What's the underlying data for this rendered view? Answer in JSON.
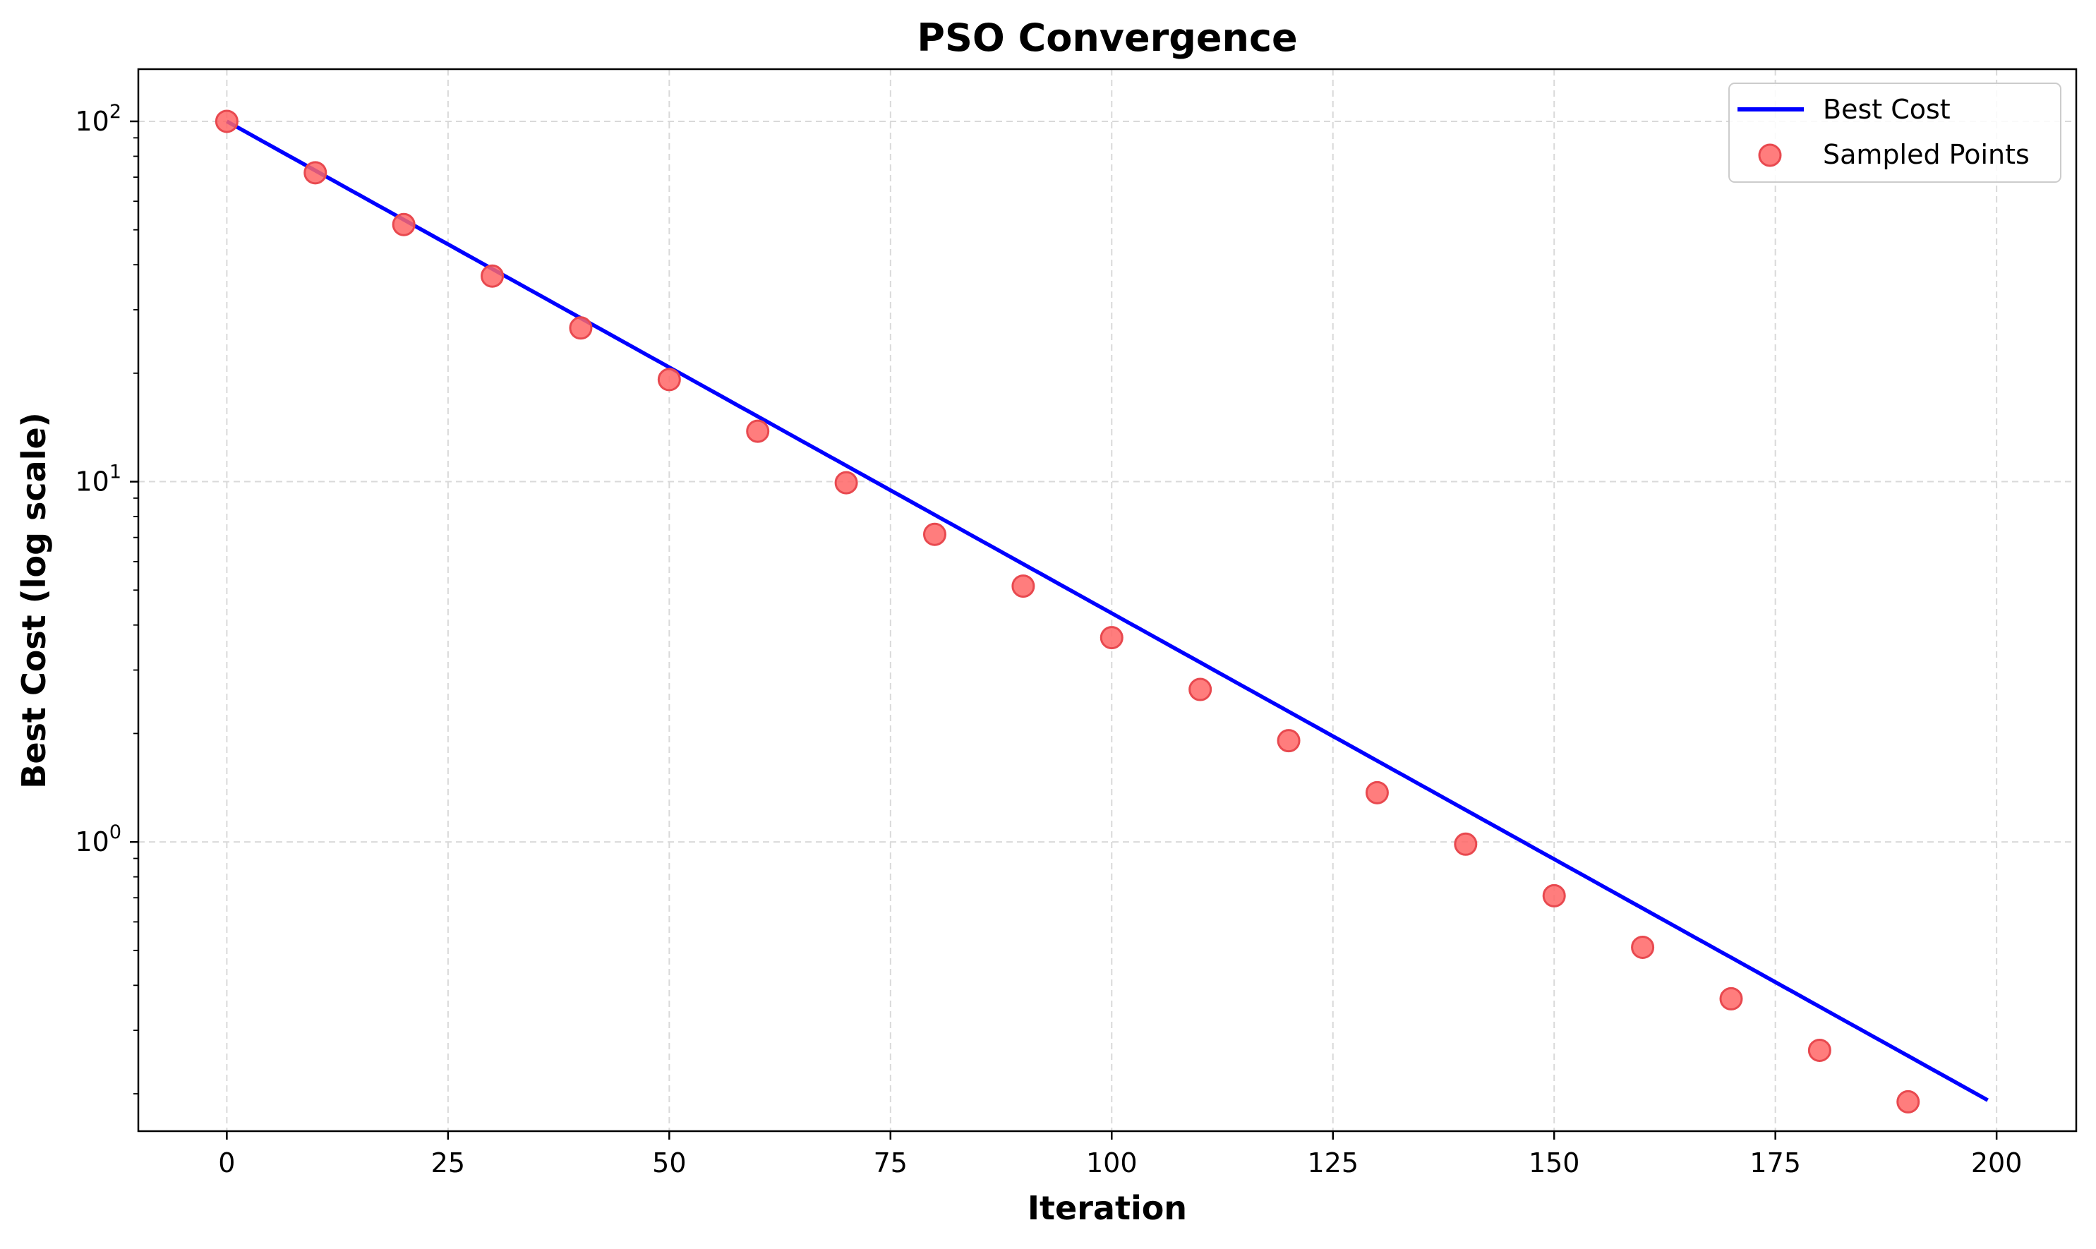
{
  "chart_data": {
    "type": "line",
    "title": "PSO Convergence",
    "xlabel": "Iteration",
    "ylabel": "Best Cost (log scale)",
    "xlim": [
      -10,
      209
    ],
    "ylim": [
      0.1575,
      139.6
    ],
    "yscale": "log",
    "grid": true,
    "legend_position": "top-right",
    "x_ticks": [
      0,
      25,
      50,
      75,
      100,
      125,
      150,
      175,
      200
    ],
    "x_tick_labels": [
      "0",
      "25",
      "50",
      "75",
      "100",
      "125",
      "150",
      "175",
      "200"
    ],
    "y_ticks": [
      {
        "value": 100,
        "base": "10",
        "exp": "2"
      },
      {
        "value": 10,
        "base": "10",
        "exp": "1"
      },
      {
        "value": 1,
        "base": "10",
        "exp": "0"
      }
    ],
    "series": [
      {
        "name": "Best Cost",
        "kind": "line",
        "color": "#0000ff",
        "start": {
          "x": 0,
          "y": 100
        },
        "end": {
          "x": 199,
          "y": 0.192
        }
      },
      {
        "name": "Sampled Points",
        "kind": "scatter",
        "color": "#ff4d4d",
        "x": [
          0,
          10,
          20,
          30,
          40,
          50,
          60,
          70,
          80,
          90,
          100,
          110,
          120,
          130,
          140,
          150,
          160,
          170,
          180,
          190
        ],
        "y": [
          100,
          72.0,
          51.7,
          37.2,
          26.7,
          19.2,
          13.8,
          9.93,
          7.14,
          5.13,
          3.69,
          2.65,
          1.91,
          1.37,
          0.986,
          0.709,
          0.51,
          0.367,
          0.264,
          0.19
        ]
      }
    ],
    "colors": {
      "line": "#0000ff",
      "marker_fill": "#ff6666",
      "marker_edge": "#e8494f",
      "grid": "#d9d9d9"
    }
  }
}
